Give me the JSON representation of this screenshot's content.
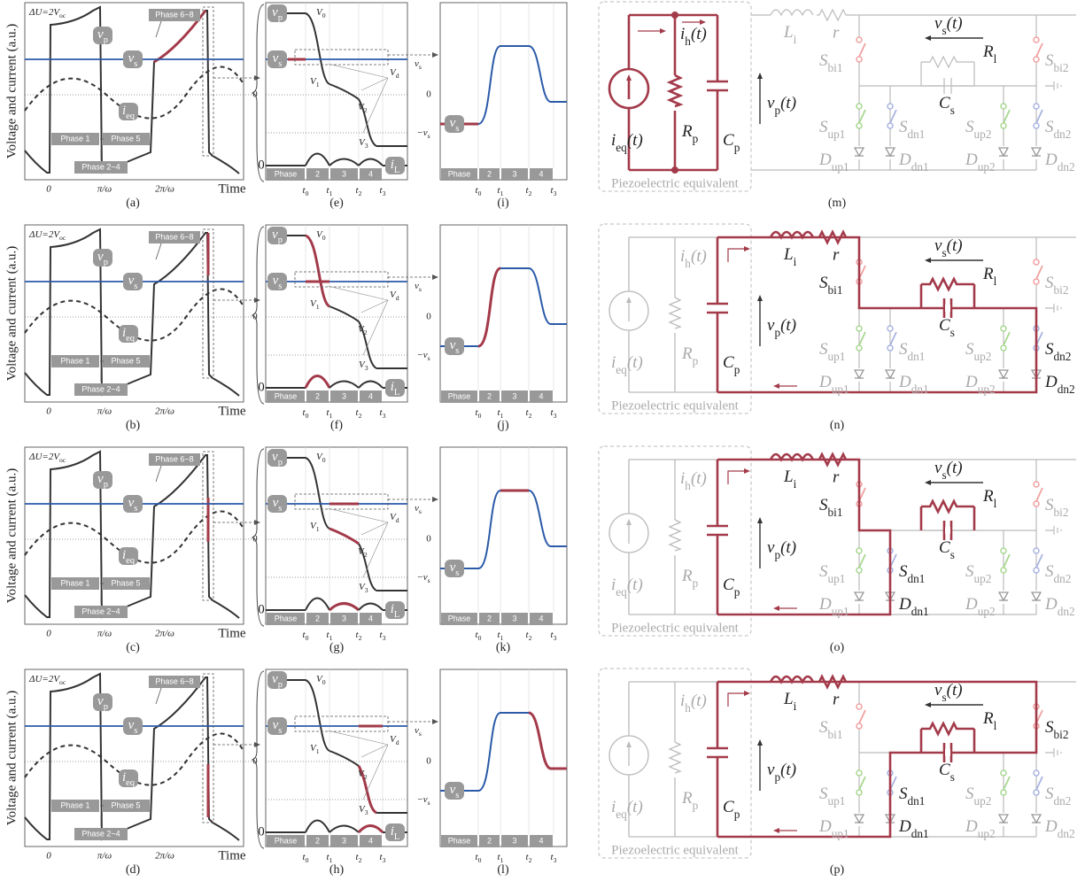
{
  "waveform_labels": {
    "y_axis": "Voltage and current (a.u.)",
    "delta": [
      "ΔU=2V",
      "oc"
    ],
    "vp": [
      "v",
      "p"
    ],
    "vs": [
      "v",
      "s"
    ],
    "ieq": [
      "i",
      "eq"
    ],
    "zero": "0",
    "phase1": "Phase 1",
    "phase5": "Phase 5",
    "phase24": "Phase 2~4",
    "phase68": "Phase 6~8",
    "xticks": [
      "0",
      "π/ω",
      "2π/ω"
    ],
    "xlabel": "Time"
  },
  "zoom_labels": {
    "vp": [
      "v",
      "p"
    ],
    "V0": [
      "V",
      "0"
    ],
    "vs": [
      "v",
      "s"
    ],
    "V1": [
      "V",
      "1"
    ],
    "V2": [
      "V",
      "2"
    ],
    "V3": [
      "V",
      "3"
    ],
    "Vd": [
      "V",
      "d"
    ],
    "vs_right": [
      "v",
      "s"
    ],
    "zero_right": "0",
    "neg_vs": [
      "−v",
      "s"
    ],
    "zero_left": "0",
    "iL": [
      "i",
      "L"
    ],
    "phase_bar": [
      "Phase",
      "2",
      "3",
      "4"
    ],
    "t": [
      [
        "t",
        "0"
      ],
      [
        "t",
        "1"
      ],
      [
        "t",
        "2"
      ],
      [
        "t",
        "3"
      ]
    ]
  },
  "detail_labels": {
    "vs": [
      "v",
      "s"
    ],
    "phase_bar": [
      "Phase",
      "2",
      "3",
      "4"
    ],
    "t": [
      [
        "t",
        "0"
      ],
      [
        "t",
        "1"
      ],
      [
        "t",
        "2"
      ],
      [
        "t",
        "3"
      ]
    ]
  },
  "circuit_labels": {
    "ih": [
      "i",
      "h",
      "(t)"
    ],
    "Li": [
      "L",
      "i"
    ],
    "r": "r",
    "vst": [
      "v",
      "s",
      "(t)"
    ],
    "Rl": [
      "R",
      "l"
    ],
    "Sbi1": [
      "S",
      "bi1"
    ],
    "Sbi2": [
      "S",
      "bi2"
    ],
    "Cs": [
      "C",
      "s"
    ],
    "ieq": [
      "i",
      "eq",
      "(t)"
    ],
    "Rp": [
      "R",
      "p"
    ],
    "Cp": [
      "C",
      "p"
    ],
    "vpt": [
      "v",
      "p",
      "(t)"
    ],
    "Sup1": [
      "S",
      "up1"
    ],
    "Sdn1": [
      "S",
      "dn1"
    ],
    "Sup2": [
      "S",
      "up2"
    ],
    "Sdn2": [
      "S",
      "dn2"
    ],
    "Dup1": [
      "D",
      "up1"
    ],
    "Ddn1": [
      "D",
      "dn1"
    ],
    "Dup2": [
      "D",
      "up2"
    ],
    "Ddn2": [
      "D",
      "dn2"
    ],
    "piezo": "Piezoelectric equivalent"
  },
  "rows": [
    {
      "captions": [
        "(a)",
        "(e)",
        "(i)",
        "(m)"
      ]
    },
    {
      "captions": [
        "(b)",
        "(f)",
        "(j)",
        "(n)"
      ]
    },
    {
      "captions": [
        "(c)",
        "(g)",
        "(k)",
        "(o)"
      ]
    },
    {
      "captions": [
        "(d)",
        "(h)",
        "(l)",
        "(p)"
      ]
    }
  ]
}
